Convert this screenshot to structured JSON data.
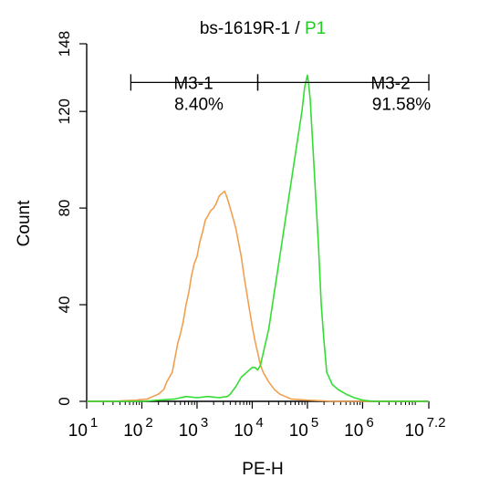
{
  "chart_data": {
    "type": "line",
    "title": {
      "prefix": "bs-1619R-1 / ",
      "highlight": "P1",
      "highlight_color": "#22cc22"
    },
    "xlabel": "PE-H",
    "ylabel": "Count",
    "x_scale": "log10",
    "xlim": [
      1,
      7.2
    ],
    "ylim": [
      0,
      148
    ],
    "x_ticks": [
      {
        "pos": 1,
        "base": "10",
        "exp": "1"
      },
      {
        "pos": 2,
        "base": "10",
        "exp": "2"
      },
      {
        "pos": 3,
        "base": "10",
        "exp": "3"
      },
      {
        "pos": 4,
        "base": "10",
        "exp": "4"
      },
      {
        "pos": 5,
        "base": "10",
        "exp": "5"
      },
      {
        "pos": 6,
        "base": "10",
        "exp": "6"
      },
      {
        "pos": 7.2,
        "base": "10",
        "exp": "7.2"
      }
    ],
    "y_ticks": [
      0,
      40,
      80,
      120,
      148
    ],
    "grid": false,
    "series": [
      {
        "color": "#f0a050",
        "points": [
          [
            1.0,
            0
          ],
          [
            1.5,
            0
          ],
          [
            1.7,
            0.3
          ],
          [
            1.9,
            0.5
          ],
          [
            2.0,
            0.8
          ],
          [
            2.1,
            1
          ],
          [
            2.2,
            2
          ],
          [
            2.3,
            3
          ],
          [
            2.4,
            5
          ],
          [
            2.45,
            8
          ],
          [
            2.5,
            10
          ],
          [
            2.55,
            12
          ],
          [
            2.6,
            18
          ],
          [
            2.65,
            24
          ],
          [
            2.7,
            28
          ],
          [
            2.75,
            33
          ],
          [
            2.8,
            40
          ],
          [
            2.85,
            45
          ],
          [
            2.9,
            52
          ],
          [
            2.95,
            57
          ],
          [
            3.0,
            60
          ],
          [
            3.05,
            66
          ],
          [
            3.1,
            70
          ],
          [
            3.15,
            75
          ],
          [
            3.2,
            77
          ],
          [
            3.25,
            79
          ],
          [
            3.3,
            80
          ],
          [
            3.35,
            82
          ],
          [
            3.4,
            85
          ],
          [
            3.45,
            86
          ],
          [
            3.5,
            87
          ],
          [
            3.55,
            84
          ],
          [
            3.6,
            80
          ],
          [
            3.65,
            76
          ],
          [
            3.7,
            72
          ],
          [
            3.75,
            66
          ],
          [
            3.8,
            60
          ],
          [
            3.85,
            52
          ],
          [
            3.9,
            45
          ],
          [
            3.95,
            38
          ],
          [
            4.0,
            31
          ],
          [
            4.05,
            25
          ],
          [
            4.1,
            20
          ],
          [
            4.15,
            15
          ],
          [
            4.2,
            12
          ],
          [
            4.3,
            8
          ],
          [
            4.4,
            5
          ],
          [
            4.5,
            3
          ],
          [
            4.6,
            2
          ],
          [
            4.7,
            1
          ],
          [
            5.0,
            0.5
          ],
          [
            5.5,
            0
          ],
          [
            7.2,
            0
          ]
        ]
      },
      {
        "color": "#33dd33",
        "points": [
          [
            1.0,
            0
          ],
          [
            2.0,
            0
          ],
          [
            2.3,
            0.5
          ],
          [
            2.6,
            1
          ],
          [
            2.8,
            2
          ],
          [
            3.0,
            1.5
          ],
          [
            3.2,
            2
          ],
          [
            3.4,
            1.5
          ],
          [
            3.55,
            2
          ],
          [
            3.6,
            3
          ],
          [
            3.7,
            6
          ],
          [
            3.8,
            10
          ],
          [
            3.9,
            12
          ],
          [
            4.0,
            14
          ],
          [
            4.05,
            14
          ],
          [
            4.1,
            13
          ],
          [
            4.15,
            15
          ],
          [
            4.2,
            20
          ],
          [
            4.3,
            30
          ],
          [
            4.4,
            45
          ],
          [
            4.5,
            60
          ],
          [
            4.6,
            75
          ],
          [
            4.7,
            90
          ],
          [
            4.8,
            105
          ],
          [
            4.9,
            120
          ],
          [
            4.95,
            130
          ],
          [
            5.0,
            135
          ],
          [
            5.02,
            132
          ],
          [
            5.05,
            125
          ],
          [
            5.1,
            105
          ],
          [
            5.15,
            85
          ],
          [
            5.2,
            65
          ],
          [
            5.25,
            40
          ],
          [
            5.3,
            25
          ],
          [
            5.35,
            12
          ],
          [
            5.45,
            7
          ],
          [
            5.55,
            5
          ],
          [
            5.7,
            3
          ],
          [
            5.85,
            1.5
          ],
          [
            6.0,
            0.5
          ],
          [
            6.2,
            0
          ],
          [
            7.2,
            0
          ]
        ]
      }
    ],
    "gates": [
      {
        "label": "M3-1",
        "percent": "8.40%",
        "x_start": 1.8,
        "x_end": 4.1,
        "y": 132
      },
      {
        "label": "M3-2",
        "percent": "91.58%",
        "x_start": 4.1,
        "x_end": 7.2,
        "y": 132
      }
    ]
  }
}
